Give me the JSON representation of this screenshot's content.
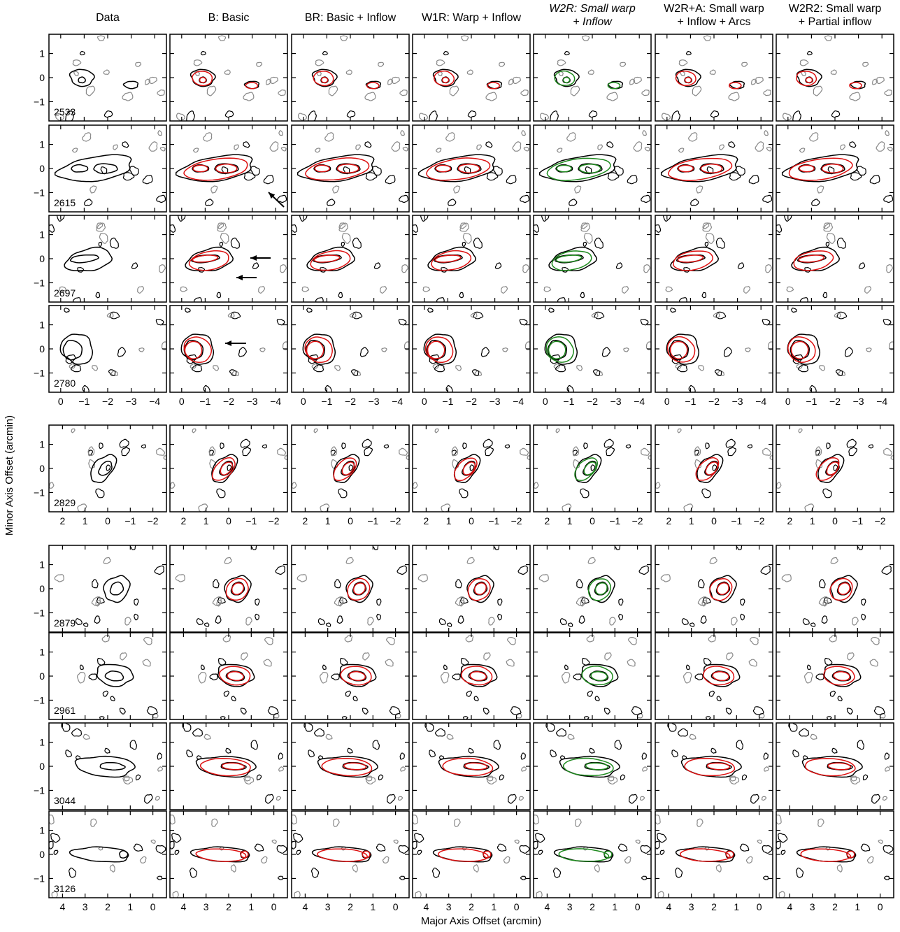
{
  "figure": {
    "xlabel": "Major Axis Offset (arcmin)",
    "ylabel": "Minor Axis Offset (arcmin)"
  },
  "columns": [
    {
      "title_line1": "Data",
      "title_line2": "",
      "italic": false
    },
    {
      "title_line1": "B: Basic",
      "title_line2": "",
      "italic": false
    },
    {
      "title_line1": "BR: Basic + Inflow",
      "title_line2": "",
      "italic": false
    },
    {
      "title_line1": "W1R: Warp + Inflow",
      "title_line2": "",
      "italic": false
    },
    {
      "title_line1": "W2R: Small warp",
      "title_line2": "+ Inflow",
      "italic": true
    },
    {
      "title_line1": "W2R+A: Small warp",
      "title_line2": "+ Inflow + Arcs",
      "italic": false
    },
    {
      "title_line1": "W2R2: Small warp",
      "title_line2": "+ Partial inflow",
      "italic": false
    }
  ],
  "colors": {
    "data_contour": "#000000",
    "negative_contour": "#888888",
    "model_contour": "#dd1111",
    "preferred_model_contour": "#1f8a1f",
    "arrow": "#000000"
  },
  "chart_data": {
    "type": "contour-grid",
    "title": "",
    "xlabel": "Major Axis Offset (arcmin)",
    "ylabel": "Minor Axis Offset (arcmin)",
    "ylim": [
      -1.8,
      1.8
    ],
    "yticks": [
      -1,
      0,
      1
    ],
    "grid": false,
    "groups": [
      {
        "xlim": [
          0.5,
          -4.5
        ],
        "xticks": [
          0,
          -1,
          -2,
          -3,
          -4
        ],
        "xtick_labels": [
          "0",
          "−1",
          "−2",
          "−3",
          "−4"
        ],
        "velocities": [
          "2533",
          "2615",
          "2697",
          "2780"
        ]
      },
      {
        "xlim": [
          2.6,
          -2.6
        ],
        "xticks": [
          2,
          1,
          0,
          -1,
          -2
        ],
        "xtick_labels": [
          "2",
          "1",
          "0",
          "−1",
          "−2"
        ],
        "velocities": [
          "2829"
        ]
      },
      {
        "xlim": [
          4.6,
          -0.6
        ],
        "xticks": [
          4,
          3,
          2,
          1,
          0
        ],
        "xtick_labels": [
          "4",
          "3",
          "2",
          "1",
          "0"
        ],
        "velocities": [
          "2879",
          "2961",
          "3044",
          "3126"
        ]
      }
    ],
    "ytick_labels": [
      "1",
      "0",
      "−1"
    ],
    "highlighted_model": "W2R: Small warp + Inflow"
  }
}
